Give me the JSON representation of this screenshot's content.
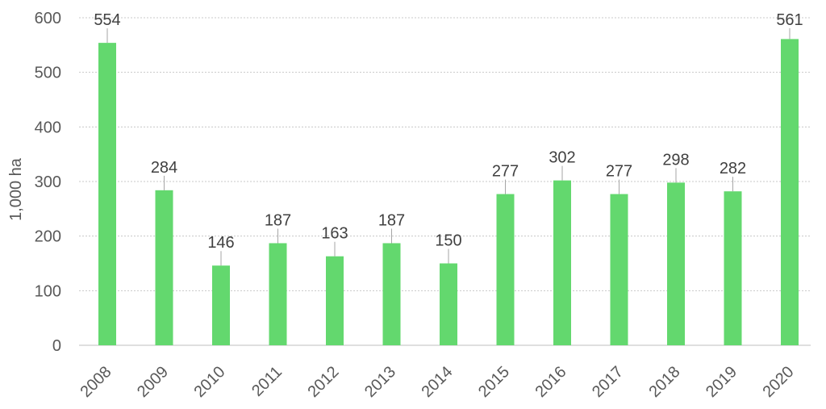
{
  "chart_data": {
    "type": "bar",
    "categories": [
      "2008",
      "2009",
      "2010",
      "2011",
      "2012",
      "2013",
      "2014",
      "2015",
      "2016",
      "2017",
      "2018",
      "2019",
      "2020"
    ],
    "values": [
      554,
      284,
      146,
      187,
      163,
      187,
      150,
      277,
      302,
      277,
      298,
      282,
      561
    ],
    "data_labels": [
      "554",
      "284",
      "146",
      "187",
      "163",
      "187",
      "150",
      "277",
      "302",
      "277",
      "298",
      "282",
      "561"
    ],
    "ylabel": "1,000 ha",
    "xlabel": "",
    "title": "",
    "ylim": [
      0,
      600
    ],
    "yticks": [
      "0",
      "100",
      "200",
      "300",
      "400",
      "500",
      "600"
    ],
    "grid": true,
    "legend": "none",
    "bar_color": "#63d86e",
    "grid_color": "#c8c8c8",
    "leader_color": "#a6a6a6"
  }
}
